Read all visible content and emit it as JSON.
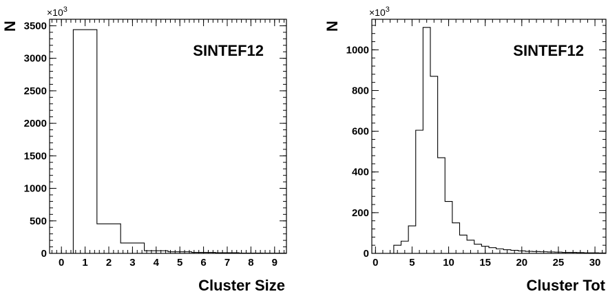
{
  "chart_data": [
    {
      "type": "histogram",
      "title": "",
      "annotation": "SINTEF12",
      "xlabel": "Cluster Size",
      "ylabel": "N",
      "y_multiplier": "×10",
      "y_multiplier_exp": "3",
      "xlim": [
        -0.5,
        9.5
      ],
      "ylim": [
        0,
        3600
      ],
      "x_ticks": [
        0,
        1,
        2,
        3,
        4,
        5,
        6,
        7,
        8,
        9
      ],
      "y_ticks": [
        0,
        500,
        1000,
        1500,
        2000,
        2500,
        3000,
        3500
      ],
      "bin_width": 1,
      "bins": [
        {
          "x": 0,
          "y": 0
        },
        {
          "x": 1,
          "y": 3440
        },
        {
          "x": 2,
          "y": 455
        },
        {
          "x": 3,
          "y": 160
        },
        {
          "x": 4,
          "y": 40
        },
        {
          "x": 5,
          "y": 25
        },
        {
          "x": 6,
          "y": 15
        },
        {
          "x": 7,
          "y": 10
        },
        {
          "x": 8,
          "y": 5
        },
        {
          "x": 9,
          "y": 3
        }
      ]
    },
    {
      "type": "histogram",
      "title": "",
      "annotation": "SINTEF12",
      "xlabel": "Cluster Tot",
      "ylabel": "N",
      "y_multiplier": "×10",
      "y_multiplier_exp": "3",
      "xlim": [
        -0.5,
        31.5
      ],
      "ylim": [
        0,
        1150
      ],
      "x_ticks": [
        0,
        5,
        10,
        15,
        20,
        25,
        30
      ],
      "y_ticks": [
        0,
        200,
        400,
        600,
        800,
        1000
      ],
      "bin_width": 1,
      "bins": [
        {
          "x": 0,
          "y": 0
        },
        {
          "x": 1,
          "y": 0
        },
        {
          "x": 2,
          "y": 0
        },
        {
          "x": 3,
          "y": 40
        },
        {
          "x": 4,
          "y": 60
        },
        {
          "x": 5,
          "y": 135
        },
        {
          "x": 6,
          "y": 605
        },
        {
          "x": 7,
          "y": 1110
        },
        {
          "x": 8,
          "y": 870
        },
        {
          "x": 9,
          "y": 470
        },
        {
          "x": 10,
          "y": 255
        },
        {
          "x": 11,
          "y": 150
        },
        {
          "x": 12,
          "y": 90
        },
        {
          "x": 13,
          "y": 65
        },
        {
          "x": 14,
          "y": 45
        },
        {
          "x": 15,
          "y": 35
        },
        {
          "x": 16,
          "y": 28
        },
        {
          "x": 17,
          "y": 22
        },
        {
          "x": 18,
          "y": 18
        },
        {
          "x": 19,
          "y": 15
        },
        {
          "x": 20,
          "y": 12
        },
        {
          "x": 21,
          "y": 10
        },
        {
          "x": 22,
          "y": 9
        },
        {
          "x": 23,
          "y": 8
        },
        {
          "x": 24,
          "y": 7
        },
        {
          "x": 25,
          "y": 6
        },
        {
          "x": 26,
          "y": 5
        },
        {
          "x": 27,
          "y": 5
        },
        {
          "x": 28,
          "y": 4
        },
        {
          "x": 29,
          "y": 3
        },
        {
          "x": 30,
          "y": 3
        },
        {
          "x": 31,
          "y": 2
        }
      ]
    }
  ]
}
